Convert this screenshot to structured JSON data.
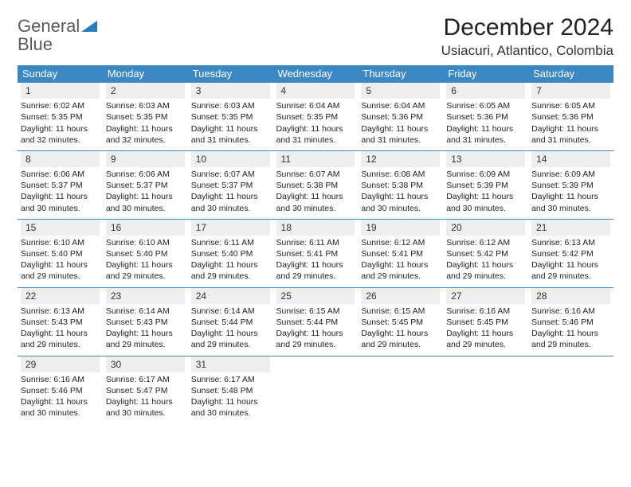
{
  "brand": {
    "name_part1": "General",
    "name_part2": "Blue"
  },
  "title": "December 2024",
  "location": "Usiacuri, Atlantico, Colombia",
  "header_bg": "#3b88c4",
  "header_fg": "#ffffff",
  "daynum_bg": "#eceeef",
  "rule_color": "#3b88c4",
  "text_color": "#222222",
  "font_family": "Arial, Helvetica, sans-serif",
  "title_fontsize": 30,
  "location_fontsize": 17,
  "dayhdr_fontsize": 13,
  "daynum_fontsize": 12,
  "cell_fontsize": 10.5,
  "columns": [
    "Sunday",
    "Monday",
    "Tuesday",
    "Wednesday",
    "Thursday",
    "Friday",
    "Saturday"
  ],
  "weeks": [
    [
      {
        "n": "1",
        "sr": "Sunrise: 6:02 AM",
        "ss": "Sunset: 5:35 PM",
        "dl": "Daylight: 11 hours and 32 minutes."
      },
      {
        "n": "2",
        "sr": "Sunrise: 6:03 AM",
        "ss": "Sunset: 5:35 PM",
        "dl": "Daylight: 11 hours and 32 minutes."
      },
      {
        "n": "3",
        "sr": "Sunrise: 6:03 AM",
        "ss": "Sunset: 5:35 PM",
        "dl": "Daylight: 11 hours and 31 minutes."
      },
      {
        "n": "4",
        "sr": "Sunrise: 6:04 AM",
        "ss": "Sunset: 5:35 PM",
        "dl": "Daylight: 11 hours and 31 minutes."
      },
      {
        "n": "5",
        "sr": "Sunrise: 6:04 AM",
        "ss": "Sunset: 5:36 PM",
        "dl": "Daylight: 11 hours and 31 minutes."
      },
      {
        "n": "6",
        "sr": "Sunrise: 6:05 AM",
        "ss": "Sunset: 5:36 PM",
        "dl": "Daylight: 11 hours and 31 minutes."
      },
      {
        "n": "7",
        "sr": "Sunrise: 6:05 AM",
        "ss": "Sunset: 5:36 PM",
        "dl": "Daylight: 11 hours and 31 minutes."
      }
    ],
    [
      {
        "n": "8",
        "sr": "Sunrise: 6:06 AM",
        "ss": "Sunset: 5:37 PM",
        "dl": "Daylight: 11 hours and 30 minutes."
      },
      {
        "n": "9",
        "sr": "Sunrise: 6:06 AM",
        "ss": "Sunset: 5:37 PM",
        "dl": "Daylight: 11 hours and 30 minutes."
      },
      {
        "n": "10",
        "sr": "Sunrise: 6:07 AM",
        "ss": "Sunset: 5:37 PM",
        "dl": "Daylight: 11 hours and 30 minutes."
      },
      {
        "n": "11",
        "sr": "Sunrise: 6:07 AM",
        "ss": "Sunset: 5:38 PM",
        "dl": "Daylight: 11 hours and 30 minutes."
      },
      {
        "n": "12",
        "sr": "Sunrise: 6:08 AM",
        "ss": "Sunset: 5:38 PM",
        "dl": "Daylight: 11 hours and 30 minutes."
      },
      {
        "n": "13",
        "sr": "Sunrise: 6:09 AM",
        "ss": "Sunset: 5:39 PM",
        "dl": "Daylight: 11 hours and 30 minutes."
      },
      {
        "n": "14",
        "sr": "Sunrise: 6:09 AM",
        "ss": "Sunset: 5:39 PM",
        "dl": "Daylight: 11 hours and 30 minutes."
      }
    ],
    [
      {
        "n": "15",
        "sr": "Sunrise: 6:10 AM",
        "ss": "Sunset: 5:40 PM",
        "dl": "Daylight: 11 hours and 29 minutes."
      },
      {
        "n": "16",
        "sr": "Sunrise: 6:10 AM",
        "ss": "Sunset: 5:40 PM",
        "dl": "Daylight: 11 hours and 29 minutes."
      },
      {
        "n": "17",
        "sr": "Sunrise: 6:11 AM",
        "ss": "Sunset: 5:40 PM",
        "dl": "Daylight: 11 hours and 29 minutes."
      },
      {
        "n": "18",
        "sr": "Sunrise: 6:11 AM",
        "ss": "Sunset: 5:41 PM",
        "dl": "Daylight: 11 hours and 29 minutes."
      },
      {
        "n": "19",
        "sr": "Sunrise: 6:12 AM",
        "ss": "Sunset: 5:41 PM",
        "dl": "Daylight: 11 hours and 29 minutes."
      },
      {
        "n": "20",
        "sr": "Sunrise: 6:12 AM",
        "ss": "Sunset: 5:42 PM",
        "dl": "Daylight: 11 hours and 29 minutes."
      },
      {
        "n": "21",
        "sr": "Sunrise: 6:13 AM",
        "ss": "Sunset: 5:42 PM",
        "dl": "Daylight: 11 hours and 29 minutes."
      }
    ],
    [
      {
        "n": "22",
        "sr": "Sunrise: 6:13 AM",
        "ss": "Sunset: 5:43 PM",
        "dl": "Daylight: 11 hours and 29 minutes."
      },
      {
        "n": "23",
        "sr": "Sunrise: 6:14 AM",
        "ss": "Sunset: 5:43 PM",
        "dl": "Daylight: 11 hours and 29 minutes."
      },
      {
        "n": "24",
        "sr": "Sunrise: 6:14 AM",
        "ss": "Sunset: 5:44 PM",
        "dl": "Daylight: 11 hours and 29 minutes."
      },
      {
        "n": "25",
        "sr": "Sunrise: 6:15 AM",
        "ss": "Sunset: 5:44 PM",
        "dl": "Daylight: 11 hours and 29 minutes."
      },
      {
        "n": "26",
        "sr": "Sunrise: 6:15 AM",
        "ss": "Sunset: 5:45 PM",
        "dl": "Daylight: 11 hours and 29 minutes."
      },
      {
        "n": "27",
        "sr": "Sunrise: 6:16 AM",
        "ss": "Sunset: 5:45 PM",
        "dl": "Daylight: 11 hours and 29 minutes."
      },
      {
        "n": "28",
        "sr": "Sunrise: 6:16 AM",
        "ss": "Sunset: 5:46 PM",
        "dl": "Daylight: 11 hours and 29 minutes."
      }
    ],
    [
      {
        "n": "29",
        "sr": "Sunrise: 6:16 AM",
        "ss": "Sunset: 5:46 PM",
        "dl": "Daylight: 11 hours and 30 minutes."
      },
      {
        "n": "30",
        "sr": "Sunrise: 6:17 AM",
        "ss": "Sunset: 5:47 PM",
        "dl": "Daylight: 11 hours and 30 minutes."
      },
      {
        "n": "31",
        "sr": "Sunrise: 6:17 AM",
        "ss": "Sunset: 5:48 PM",
        "dl": "Daylight: 11 hours and 30 minutes."
      },
      null,
      null,
      null,
      null
    ]
  ]
}
